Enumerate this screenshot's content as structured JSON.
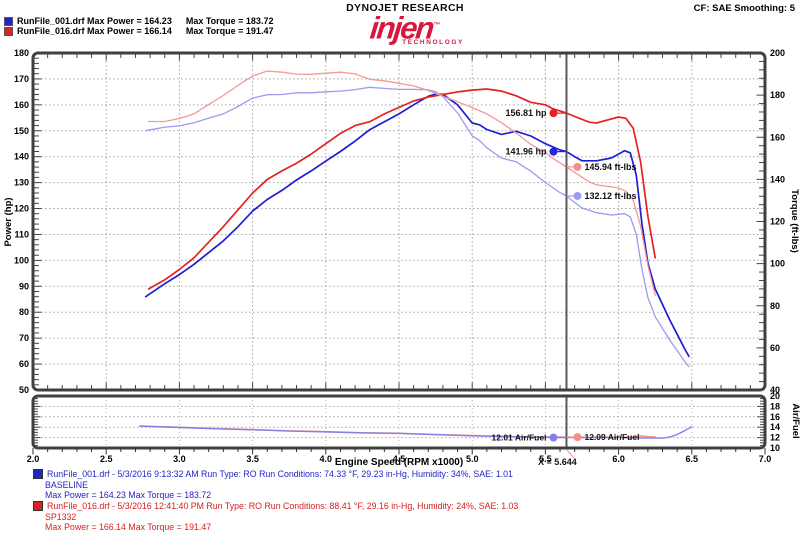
{
  "header": {
    "cf_label": "CF: SAE  Smoothing: 5",
    "brand": "DYNOJET RESEARCH",
    "logo": {
      "word": "injen",
      "mark": "™",
      "sub": "TECHNOLOGY"
    },
    "legend": [
      {
        "color": "#2222cc",
        "label": "RunFile_001.drf Max Power = 164.23",
        "label2": "Max Torque = 183.72"
      },
      {
        "color": "#dd2020",
        "label": "RunFile_016.drf Max Power = 166.14",
        "label2": "Max Torque = 191.47"
      }
    ]
  },
  "chart_data": {
    "type": "line",
    "xlabel": "Engine Speed (RPM x1000)",
    "x_range": [
      2.0,
      7.0
    ],
    "x_major": 0.5,
    "x_minor": 0.1,
    "grid": "dotted",
    "cursor": {
      "x": 5.644,
      "label": "X = 5.644"
    },
    "main": {
      "left_axis": {
        "label": "Power (hp)",
        "range": [
          50,
          180
        ],
        "step": 10,
        "minor": 2
      },
      "right_axis": {
        "label": "Torque (ft-lbs)",
        "range": [
          40,
          200
        ],
        "step": 20,
        "minor": 4
      },
      "series": [
        {
          "name": "power-baseline",
          "axis": "power",
          "color": "#1e1ed2",
          "width": 1.7,
          "points": [
            [
              2.77,
              86
            ],
            [
              2.9,
              91
            ],
            [
              3.0,
              94.5
            ],
            [
              3.1,
              98.5
            ],
            [
              3.2,
              103
            ],
            [
              3.3,
              107.5
            ],
            [
              3.4,
              113
            ],
            [
              3.5,
              119
            ],
            [
              3.6,
              123.5
            ],
            [
              3.7,
              127
            ],
            [
              3.8,
              131
            ],
            [
              3.9,
              134.5
            ],
            [
              4.0,
              138.3
            ],
            [
              4.1,
              142
            ],
            [
              4.2,
              146
            ],
            [
              4.3,
              150.4
            ],
            [
              4.4,
              153.5
            ],
            [
              4.5,
              156.5
            ],
            [
              4.6,
              160
            ],
            [
              4.7,
              163.3
            ],
            [
              4.75,
              164.2
            ],
            [
              4.8,
              164
            ],
            [
              4.9,
              160
            ],
            [
              5.0,
              153
            ],
            [
              5.05,
              152.3
            ],
            [
              5.1,
              150.5
            ],
            [
              5.2,
              148.6
            ],
            [
              5.3,
              149.8
            ],
            [
              5.4,
              148
            ],
            [
              5.5,
              145
            ],
            [
              5.6,
              142.6
            ],
            [
              5.644,
              141.96
            ],
            [
              5.7,
              140
            ],
            [
              5.75,
              138.4
            ],
            [
              5.85,
              138.4
            ],
            [
              5.95,
              139.5
            ],
            [
              6.0,
              141
            ],
            [
              6.04,
              142.3
            ],
            [
              6.08,
              141.5
            ],
            [
              6.12,
              133
            ],
            [
              6.16,
              114
            ],
            [
              6.2,
              99
            ],
            [
              6.25,
              89
            ],
            [
              6.3,
              83
            ],
            [
              6.35,
              77
            ],
            [
              6.4,
              71.5
            ],
            [
              6.45,
              66
            ],
            [
              6.48,
              63
            ]
          ]
        },
        {
          "name": "power-sp1332",
          "axis": "power",
          "color": "#e32222",
          "width": 1.7,
          "points": [
            [
              2.79,
              89
            ],
            [
              2.9,
              92.5
            ],
            [
              3.0,
              96.5
            ],
            [
              3.1,
              101
            ],
            [
              3.2,
              107
            ],
            [
              3.3,
              113
            ],
            [
              3.4,
              119.5
            ],
            [
              3.5,
              126
            ],
            [
              3.6,
              131.2
            ],
            [
              3.7,
              134.5
            ],
            [
              3.8,
              137.5
            ],
            [
              3.9,
              141
            ],
            [
              4.0,
              145
            ],
            [
              4.1,
              149
            ],
            [
              4.2,
              152
            ],
            [
              4.3,
              153.5
            ],
            [
              4.4,
              156.5
            ],
            [
              4.5,
              159
            ],
            [
              4.6,
              161.5
            ],
            [
              4.7,
              163
            ],
            [
              4.8,
              164
            ],
            [
              4.9,
              165
            ],
            [
              5.0,
              165.7
            ],
            [
              5.1,
              166.1
            ],
            [
              5.2,
              165.3
            ],
            [
              5.3,
              163.5
            ],
            [
              5.4,
              161
            ],
            [
              5.5,
              160
            ],
            [
              5.55,
              158.5
            ],
            [
              5.644,
              156.81
            ],
            [
              5.7,
              155.5
            ],
            [
              5.8,
              153.3
            ],
            [
              5.85,
              153
            ],
            [
              5.9,
              153.8
            ],
            [
              6.0,
              155.3
            ],
            [
              6.05,
              154.8
            ],
            [
              6.1,
              151
            ],
            [
              6.15,
              138
            ],
            [
              6.2,
              117
            ],
            [
              6.25,
              101
            ]
          ]
        },
        {
          "name": "torque-baseline",
          "axis": "torque",
          "color": "#9b9bf0",
          "width": 1.3,
          "points": [
            [
              2.77,
              163.1
            ],
            [
              2.9,
              164.8
            ],
            [
              3.0,
              165.4
            ],
            [
              3.1,
              166.9
            ],
            [
              3.2,
              169.1
            ],
            [
              3.3,
              171.1
            ],
            [
              3.4,
              174.6
            ],
            [
              3.5,
              178.6
            ],
            [
              3.6,
              180.2
            ],
            [
              3.7,
              180.3
            ],
            [
              3.8,
              181.1
            ],
            [
              3.9,
              181.1
            ],
            [
              4.0,
              181.6
            ],
            [
              4.1,
              181.9
            ],
            [
              4.2,
              182.6
            ],
            [
              4.3,
              183.7
            ],
            [
              4.4,
              183.2
            ],
            [
              4.5,
              182.7
            ],
            [
              4.6,
              182.7
            ],
            [
              4.7,
              182.5
            ],
            [
              4.75,
              181.6
            ],
            [
              4.8,
              179.4
            ],
            [
              4.9,
              171.5
            ],
            [
              5.0,
              160.7
            ],
            [
              5.05,
              158.4
            ],
            [
              5.1,
              155.0
            ],
            [
              5.2,
              150.1
            ],
            [
              5.3,
              148.4
            ],
            [
              5.4,
              143.9
            ],
            [
              5.5,
              138.5
            ],
            [
              5.6,
              133.7
            ],
            [
              5.644,
              132.12
            ],
            [
              5.7,
              129.0
            ],
            [
              5.75,
              126.4
            ],
            [
              5.85,
              124.2
            ],
            [
              5.95,
              123.1
            ],
            [
              6.0,
              123.4
            ],
            [
              6.04,
              123.7
            ],
            [
              6.08,
              122.2
            ],
            [
              6.12,
              114.1
            ],
            [
              6.16,
              97.2
            ],
            [
              6.2,
              83.9
            ],
            [
              6.25,
              74.8
            ],
            [
              6.3,
              69.2
            ],
            [
              6.35,
              63.7
            ],
            [
              6.4,
              58.7
            ],
            [
              6.45,
              53.7
            ],
            [
              6.48,
              51.1
            ]
          ]
        },
        {
          "name": "torque-sp1332",
          "axis": "torque",
          "color": "#f49898",
          "width": 1.3,
          "points": [
            [
              2.79,
              167.5
            ],
            [
              2.9,
              167.5
            ],
            [
              3.0,
              168.9
            ],
            [
              3.1,
              171.1
            ],
            [
              3.2,
              175.6
            ],
            [
              3.3,
              179.8
            ],
            [
              3.4,
              184.6
            ],
            [
              3.5,
              189.1
            ],
            [
              3.6,
              191.47
            ],
            [
              3.7,
              190.9
            ],
            [
              3.8,
              190.0
            ],
            [
              3.9,
              189.9
            ],
            [
              4.0,
              190.4
            ],
            [
              4.1,
              190.9
            ],
            [
              4.2,
              190.1
            ],
            [
              4.3,
              187.5
            ],
            [
              4.4,
              186.8
            ],
            [
              4.5,
              185.6
            ],
            [
              4.6,
              184.4
            ],
            [
              4.7,
              182.2
            ],
            [
              4.8,
              179.4
            ],
            [
              4.9,
              176.9
            ],
            [
              5.0,
              174.1
            ],
            [
              5.1,
              171.1
            ],
            [
              5.2,
              166.9
            ],
            [
              5.3,
              162.0
            ],
            [
              5.4,
              156.6
            ],
            [
              5.5,
              152.8
            ],
            [
              5.55,
              150.0
            ],
            [
              5.644,
              145.94
            ],
            [
              5.7,
              143.3
            ],
            [
              5.8,
              138.8
            ],
            [
              5.85,
              137.4
            ],
            [
              5.9,
              136.9
            ],
            [
              6.0,
              135.9
            ],
            [
              6.05,
              134.4
            ],
            [
              6.1,
              130.0
            ],
            [
              6.15,
              117.9
            ],
            [
              6.2,
              99.1
            ],
            [
              6.25,
              84.9
            ]
          ]
        }
      ],
      "annotations": [
        {
          "label": "156.81 hp",
          "value": 156.81,
          "axis": "power",
          "color": "#e32222",
          "side": "left"
        },
        {
          "label": "141.96 hp",
          "value": 141.96,
          "axis": "power",
          "color": "#2525dd",
          "side": "left"
        },
        {
          "label": "145.94 ft-lbs",
          "value": 145.94,
          "axis": "torque",
          "color": "#f08f8f",
          "side": "right"
        },
        {
          "label": "132.12 ft-lbs",
          "value": 132.12,
          "axis": "torque",
          "color": "#9b9bf0",
          "side": "right"
        }
      ]
    },
    "af": {
      "axis": {
        "label": "Air/Fuel",
        "range": [
          10,
          20
        ],
        "step": 2,
        "minor": 0.5
      },
      "series": [
        {
          "name": "af-sp1332",
          "color": "#f08e88",
          "width": 1.4,
          "points": [
            [
              2.73,
              14.25
            ],
            [
              3.0,
              14.0
            ],
            [
              3.25,
              13.75
            ],
            [
              3.5,
              13.55
            ],
            [
              3.75,
              13.3
            ],
            [
              4.0,
              13.15
            ],
            [
              4.25,
              12.95
            ],
            [
              4.5,
              12.85
            ],
            [
              4.75,
              12.6
            ],
            [
              5.0,
              12.4
            ],
            [
              5.2,
              12.25
            ],
            [
              5.4,
              12.15
            ],
            [
              5.644,
              12.09
            ],
            [
              5.8,
              12.05
            ],
            [
              5.9,
              12.1
            ],
            [
              6.0,
              12.05
            ],
            [
              6.1,
              12.15
            ],
            [
              6.15,
              12.3
            ],
            [
              6.2,
              12.2
            ],
            [
              6.25,
              12.1
            ]
          ]
        },
        {
          "name": "af-baseline",
          "color": "#8080e8",
          "width": 1.4,
          "points": [
            [
              2.73,
              14.2
            ],
            [
              3.0,
              13.95
            ],
            [
              3.25,
              13.7
            ],
            [
              3.5,
              13.5
            ],
            [
              3.75,
              13.25
            ],
            [
              4.0,
              13.1
            ],
            [
              4.25,
              12.9
            ],
            [
              4.5,
              12.8
            ],
            [
              4.75,
              12.55
            ],
            [
              5.0,
              12.35
            ],
            [
              5.2,
              12.2
            ],
            [
              5.4,
              12.1
            ],
            [
              5.644,
              12.01
            ],
            [
              5.8,
              12.0
            ],
            [
              6.0,
              12.0
            ],
            [
              6.1,
              11.95
            ],
            [
              6.2,
              11.9
            ],
            [
              6.3,
              11.9
            ],
            [
              6.35,
              12.1
            ],
            [
              6.4,
              12.6
            ],
            [
              6.45,
              13.3
            ],
            [
              6.5,
              14.1
            ]
          ]
        }
      ],
      "annotations": [
        {
          "label": "12.01 Air/Fuel",
          "value": 12.01,
          "color": "#8080e8",
          "side": "left"
        },
        {
          "label": "12.09 Air/Fuel",
          "value": 12.09,
          "color": "#f0908c",
          "side": "right"
        }
      ]
    }
  },
  "runs": [
    {
      "color": "#2222cc",
      "line1": "RunFile_001.drf - 5/3/2016 9:13:32 AM  Run Type: RO  Run Conditions: 74.33 °F, 29.23 in-Hg,  Humidity:  34%, SAE: 1.01",
      "line2": "BASELINE",
      "line3": "Max Power = 164.23  Max Torque = 183.72"
    },
    {
      "color": "#dd2020",
      "line1": "RunFile_016.drf - 5/3/2016 12:41:40 PM  Run Type: RO  Run Conditions: 88.41 °F, 29.16 in-Hg,  Humidity:  24%, SAE: 1.03",
      "line2": "SP1332",
      "line3": "Max Power = 166.14  Max Torque = 191.47"
    }
  ]
}
